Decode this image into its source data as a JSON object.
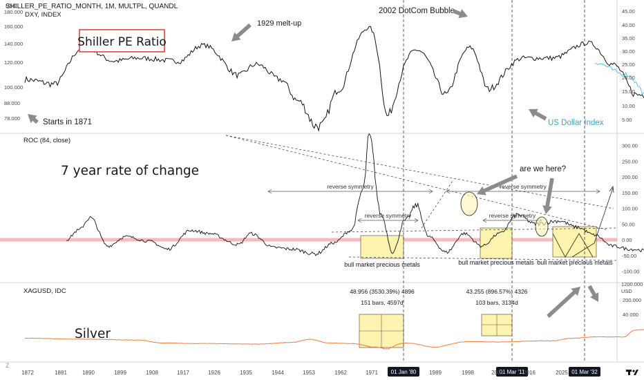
{
  "chart_data": [
    {
      "type": "line",
      "header": "SHILLER_PE_RATIO_MONTH, 1M, MULTPL, QUANDL",
      "subheader": "DXY, INDEX",
      "title": "Shiller PE Ratio",
      "left_axis": {
        "unit": "USD",
        "scale": "log",
        "ticks": [
          "180.000",
          "160.000",
          "140.000",
          "120.000",
          "100.000",
          "88.000",
          "78.000"
        ]
      },
      "right_axis": {
        "ticks": [
          "45.00",
          "40.00",
          "35.00",
          "30.00",
          "25.00",
          "20.00",
          "15.00",
          "10.00",
          "5.00"
        ]
      },
      "series": [
        {
          "name": "Shiller PE Ratio",
          "color": "#111111",
          "points": [
            [
              1871,
              12
            ],
            [
              1876,
              11
            ],
            [
              1881,
              22
            ],
            [
              1886,
              17
            ],
            [
              1890,
              18
            ],
            [
              1897,
              17
            ],
            [
              1901,
              23
            ],
            [
              1907,
              13
            ],
            [
              1910,
              16
            ],
            [
              1914,
              12
            ],
            [
              1917,
              8
            ],
            [
              1920,
              5
            ],
            [
              1921,
              5
            ],
            [
              1924,
              10
            ],
            [
              1929,
              32
            ],
            [
              1932,
              6
            ],
            [
              1937,
              21
            ],
            [
              1942,
              9
            ],
            [
              1946,
              22
            ],
            [
              1949,
              10
            ],
            [
              1955,
              18
            ],
            [
              1960,
              18
            ],
            [
              1966,
              24
            ],
            [
              1970,
              16
            ],
            [
              1974,
              9
            ],
            [
              1978,
              9
            ],
            [
              1982,
              7
            ],
            [
              1987,
              17
            ],
            [
              1990,
              17
            ],
            [
              1995,
              24
            ],
            [
              2000,
              44
            ],
            [
              2003,
              22
            ],
            [
              2007,
              27
            ],
            [
              2009,
              13
            ],
            [
              2012,
              21
            ],
            [
              2015,
              27
            ],
            [
              2017,
              32
            ],
            [
              2018,
              28
            ],
            [
              2020,
              24
            ],
            [
              2021,
              38
            ]
          ]
        },
        {
          "name": "US Dollar Index",
          "color": "#5ec8e6",
          "points": [
            [
              1967,
              120
            ],
            [
              1972,
              110
            ],
            [
              1977,
              88
            ],
            [
              1980,
              86
            ],
            [
              1985,
              160
            ],
            [
              1988,
              92
            ],
            [
              1991,
              86
            ],
            [
              1995,
              82
            ],
            [
              1998,
              98
            ],
            [
              2001,
              120
            ],
            [
              2004,
              88
            ],
            [
              2008,
              72
            ],
            [
              2009,
              88
            ],
            [
              2011,
              75
            ],
            [
              2014,
              80
            ],
            [
              2015,
              100
            ],
            [
              2017,
              103
            ],
            [
              2018,
              90
            ],
            [
              2020,
              100
            ],
            [
              2021,
              92
            ]
          ]
        }
      ],
      "annotations": [
        "1929 melt-up",
        "2002 DotCom Bubble",
        "Starts in 1871",
        "US Dollar Index"
      ]
    },
    {
      "type": "line",
      "header": "ROC (84, close)",
      "title": "7 year rate of change",
      "right_axis": {
        "ticks": [
          "300.00",
          "250.00",
          "200.00",
          "150.00",
          "100.00",
          "50.00",
          "0.00",
          "-50.00",
          "-100.00"
        ]
      },
      "ylim": [
        -110,
        340
      ],
      "series": [
        {
          "name": "ROC",
          "color": "#111111",
          "points": [
            [
              1878,
              0
            ],
            [
              1880,
              30
            ],
            [
              1882,
              70
            ],
            [
              1885,
              -20
            ],
            [
              1888,
              10
            ],
            [
              1892,
              -5
            ],
            [
              1895,
              -30
            ],
            [
              1899,
              30
            ],
            [
              1902,
              20
            ],
            [
              1907,
              -15
            ],
            [
              1909,
              20
            ],
            [
              1913,
              -25
            ],
            [
              1916,
              -30
            ],
            [
              1920,
              -45
            ],
            [
              1923,
              -10
            ],
            [
              1926,
              30
            ],
            [
              1928,
              160
            ],
            [
              1929,
              330
            ],
            [
              1931,
              80
            ],
            [
              1933,
              -40
            ],
            [
              1935,
              60
            ],
            [
              1937,
              110
            ],
            [
              1939,
              10
            ],
            [
              1942,
              -40
            ],
            [
              1945,
              20
            ],
            [
              1948,
              -20
            ],
            [
              1951,
              20
            ],
            [
              1954,
              80
            ],
            [
              1957,
              50
            ],
            [
              1961,
              60
            ],
            [
              1964,
              40
            ],
            [
              1967,
              15
            ],
            [
              1970,
              -20
            ],
            [
              1973,
              -30
            ],
            [
              1976,
              -35
            ],
            [
              1979,
              -40
            ],
            [
              1982,
              -20
            ],
            [
              1984,
              40
            ],
            [
              1986,
              100
            ],
            [
              1987,
              165
            ],
            [
              1989,
              80
            ],
            [
              1992,
              30
            ],
            [
              1995,
              70
            ],
            [
              1998,
              120
            ],
            [
              2000,
              150
            ],
            [
              2002,
              60
            ],
            [
              2004,
              20
            ],
            [
              2006,
              -30
            ],
            [
              2009,
              -45
            ],
            [
              2011,
              -20
            ],
            [
              2013,
              20
            ],
            [
              2015,
              40
            ],
            [
              2017,
              70
            ],
            [
              2018,
              30
            ],
            [
              2020,
              20
            ],
            [
              2021,
              60
            ]
          ]
        }
      ],
      "reference_line": {
        "value": 0,
        "color": "#f3a3a3"
      },
      "labels": [
        "reverse symmetry",
        "reverse symmetry",
        "reverse symmetry",
        "reverse symmetry",
        "bull market precious metals",
        "bull market precious metals",
        "bull market precious metals",
        "are we here?"
      ]
    },
    {
      "type": "line",
      "header": "XAGUSD, IDC",
      "title": "Silver",
      "right_axis": {
        "unit": "USD",
        "scale": "log",
        "ticks": [
          "1200.000",
          "200.000",
          "40.000"
        ]
      },
      "series": [
        {
          "name": "Silver",
          "color": "#f07a3c",
          "points": [
            [
              1871,
              1.3
            ],
            [
              1880,
              1.15
            ],
            [
              1890,
              1.0
            ],
            [
              1894,
              0.65
            ],
            [
              1900,
              0.6
            ],
            [
              1910,
              0.55
            ],
            [
              1916,
              0.7
            ],
            [
              1919,
              1.1
            ],
            [
              1922,
              0.65
            ],
            [
              1926,
              0.6
            ],
            [
              1930,
              0.35
            ],
            [
              1932,
              0.27
            ],
            [
              1935,
              0.65
            ],
            [
              1940,
              0.35
            ],
            [
              1946,
              0.8
            ],
            [
              1950,
              0.75
            ],
            [
              1960,
              0.9
            ],
            [
              1963,
              1.29
            ],
            [
              1967,
              1.6
            ],
            [
              1972,
              1.6
            ],
            [
              1974,
              4.5
            ],
            [
              1978,
              5.5
            ],
            [
              1980,
              40
            ],
            [
              1982,
              8
            ],
            [
              1987,
              7
            ],
            [
              1991,
              4
            ],
            [
              1995,
              5
            ],
            [
              2000,
              5
            ],
            [
              2004,
              7
            ],
            [
              2006,
              11
            ],
            [
              2008,
              17
            ],
            [
              2009,
              11
            ],
            [
              2011,
              45
            ],
            [
              2013,
              24
            ],
            [
              2015,
              15
            ],
            [
              2018,
              16
            ],
            [
              2019,
              15
            ],
            [
              2020,
              18
            ],
            [
              2021,
              27
            ]
          ]
        }
      ],
      "measure_labels": [
        {
          "line1": "48.956 (3530.39%) 4896",
          "line2": "151 bars, 4597d"
        },
        {
          "line1": "43.255 (896.57%) 4326",
          "line2": "103 bars, 3134d"
        }
      ]
    }
  ],
  "x_axis": {
    "ticks": [
      "1872",
      "1881",
      "1890",
      "1899",
      "1908",
      "1917",
      "1926",
      "1935",
      "1944",
      "1953",
      "1962",
      "1971",
      "1989",
      "1998",
      "2007",
      "2016",
      "2025"
    ],
    "markers": [
      "01 Jan '80",
      "01 Mar '11",
      "01 Mar '32"
    ]
  },
  "branding": {
    "logo": "TradingView",
    "corner_mark": "Z"
  },
  "colors": {
    "background": "#ffffff",
    "text": "#131722",
    "axis_text": "#434651",
    "pane_border": "#d1d4dc",
    "highlight_box": "#fff3b0",
    "title_box_border": "#e03a2f",
    "cyan": "#5ec8e6",
    "orange": "#f07a3c",
    "arrow_gray": "#8c8c8c"
  }
}
